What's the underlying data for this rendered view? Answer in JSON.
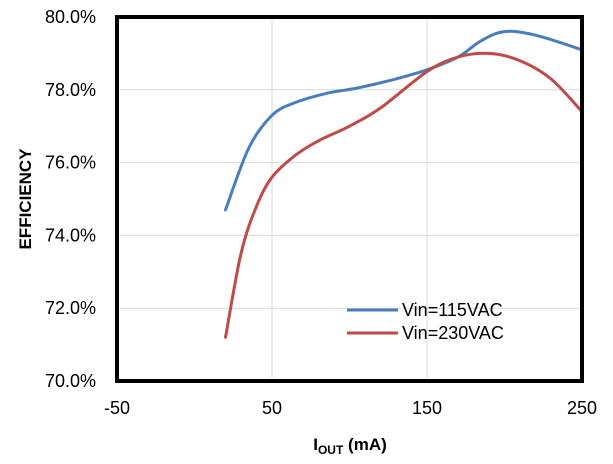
{
  "chart_data": {
    "type": "line",
    "xlabel": {
      "main": "I",
      "sub": "OUT",
      "suffix": " (mA)"
    },
    "ylabel": "EFFICIENCY",
    "xlim": [
      -50,
      250
    ],
    "ylim": [
      0.7,
      0.8
    ],
    "x_ticks": [
      -50,
      50,
      150,
      250
    ],
    "x_tick_labels": [
      "-50",
      "50",
      "150",
      "250"
    ],
    "y_ticks": [
      0.7,
      0.72,
      0.74,
      0.76,
      0.78,
      0.8
    ],
    "y_tick_labels": [
      "70.0%",
      "72.0%",
      "74.0%",
      "76.0%",
      "78.0%",
      "80.0%"
    ],
    "grid": {
      "x": true,
      "y": true
    },
    "legend_position": "bottom-right",
    "series": [
      {
        "name": "Vin=115VAC",
        "color": "#4a7ebb",
        "x": [
          20,
          35,
          50,
          65,
          85,
          105,
          130,
          150,
          170,
          185,
          200,
          220,
          250
        ],
        "y": [
          0.747,
          0.764,
          0.773,
          0.7765,
          0.779,
          0.7805,
          0.783,
          0.7855,
          0.789,
          0.7935,
          0.796,
          0.795,
          0.791
        ]
      },
      {
        "name": "Vin=230VAC",
        "color": "#be4b48",
        "x": [
          20,
          30,
          40,
          50,
          65,
          80,
          100,
          120,
          150,
          170,
          190,
          210,
          230,
          250
        ],
        "y": [
          0.712,
          0.735,
          0.748,
          0.756,
          0.762,
          0.766,
          0.77,
          0.775,
          0.785,
          0.789,
          0.79,
          0.788,
          0.783,
          0.774
        ]
      }
    ]
  }
}
